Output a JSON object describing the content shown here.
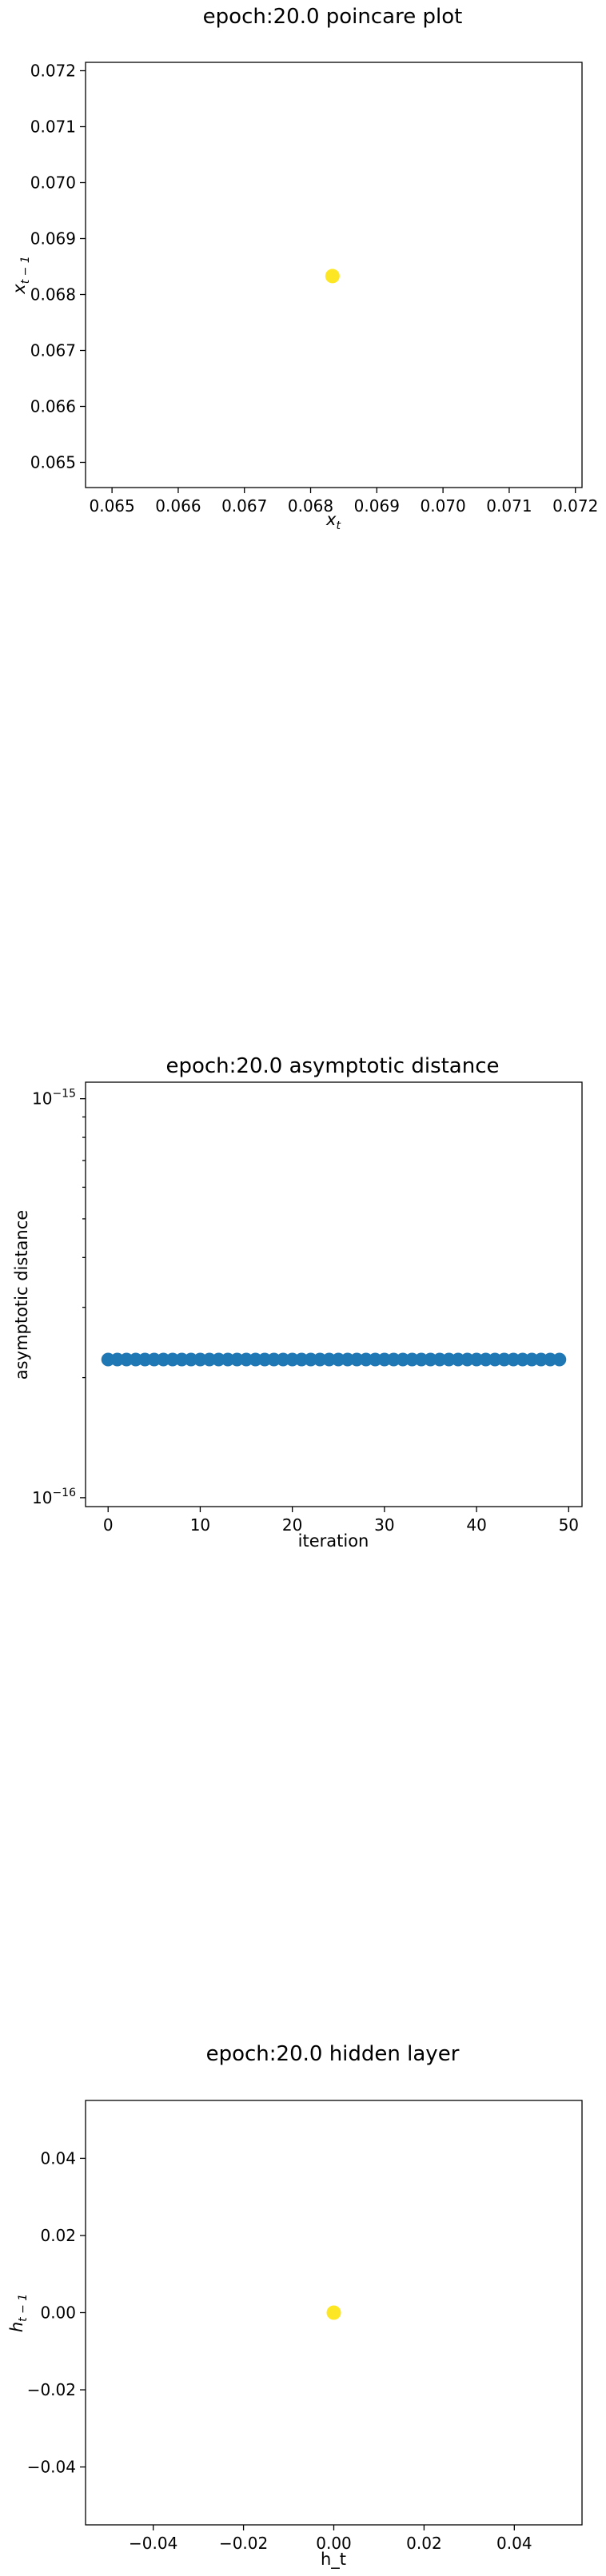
{
  "charts": [
    {
      "type": "scatter",
      "title": "epoch:20.0 poincare plot",
      "xlabel_main": "x",
      "xlabel_sub": "t",
      "ylabel_main": "x",
      "ylabel_sub": "t − 1",
      "xlim": [
        0.0646,
        0.0721
      ],
      "ylim": [
        0.06455,
        0.07215
      ],
      "xticks": [
        "0.065",
        "0.066",
        "0.067",
        "0.068",
        "0.069",
        "0.070",
        "0.071",
        "0.072"
      ],
      "yticks": [
        "0.065",
        "0.066",
        "0.067",
        "0.068",
        "0.069",
        "0.070",
        "0.071",
        "0.072"
      ],
      "points": [
        {
          "x": 0.06833,
          "y": 0.06833
        }
      ],
      "point_color": "#fde725"
    },
    {
      "type": "scatter",
      "title": "epoch:20.0 asymptotic distance",
      "xlabel": "iteration",
      "ylabel": "asymptotic distance",
      "yscale": "log",
      "xlim": [
        -2.45,
        51.45
      ],
      "ylim": [
        9.5e-17,
        1.1e-15
      ],
      "xticks": [
        "0",
        "10",
        "20",
        "30",
        "40",
        "50"
      ],
      "yticks_base": "10",
      "yticks_exp": [
        "−16",
        "−15"
      ],
      "series_y": 2.22e-16,
      "series_x": [
        0,
        1,
        2,
        3,
        4,
        5,
        6,
        7,
        8,
        9,
        10,
        11,
        12,
        13,
        14,
        15,
        16,
        17,
        18,
        19,
        20,
        21,
        22,
        23,
        24,
        25,
        26,
        27,
        28,
        29,
        30,
        31,
        32,
        33,
        34,
        35,
        36,
        37,
        38,
        39,
        40,
        41,
        42,
        43,
        44,
        45,
        46,
        47,
        48,
        49
      ],
      "point_color": "#1f77b4"
    },
    {
      "type": "scatter",
      "title": "epoch:20.0 hidden layer",
      "xlabel": "h_t",
      "ylabel_main": "h",
      "ylabel_sub": "t − 1",
      "xlim": [
        -0.055,
        0.055
      ],
      "ylim": [
        -0.055,
        0.055
      ],
      "xticks": [
        "−0.04",
        "−0.02",
        "0.00",
        "0.02",
        "0.04"
      ],
      "yticks": [
        "−0.04",
        "−0.02",
        "0.00",
        "0.02",
        "0.04"
      ],
      "points": [
        {
          "x": 0.0,
          "y": 0.0
        }
      ],
      "point_color": "#fde725"
    }
  ],
  "chart_data": [
    {
      "type": "scatter",
      "title": "epoch:20.0 poincare plot",
      "xlabel": "x_t",
      "ylabel": "x_{t-1}",
      "xlim": [
        0.0646,
        0.0721
      ],
      "ylim": [
        0.06455,
        0.07215
      ],
      "series": [
        {
          "x": [
            0.06833
          ],
          "y": [
            0.06833
          ]
        }
      ]
    },
    {
      "type": "scatter",
      "title": "epoch:20.0 asymptotic distance",
      "xlabel": "iteration",
      "ylabel": "asymptotic distance",
      "yscale": "log",
      "xlim": [
        -2.45,
        51.45
      ],
      "ylim": [
        9.5e-17,
        1.1e-15
      ],
      "series": [
        {
          "x": [
            0,
            1,
            2,
            3,
            4,
            5,
            6,
            7,
            8,
            9,
            10,
            11,
            12,
            13,
            14,
            15,
            16,
            17,
            18,
            19,
            20,
            21,
            22,
            23,
            24,
            25,
            26,
            27,
            28,
            29,
            30,
            31,
            32,
            33,
            34,
            35,
            36,
            37,
            38,
            39,
            40,
            41,
            42,
            43,
            44,
            45,
            46,
            47,
            48,
            49
          ],
          "y": [
            2.22e-16,
            2.22e-16,
            2.22e-16,
            2.22e-16,
            2.22e-16,
            2.22e-16,
            2.22e-16,
            2.22e-16,
            2.22e-16,
            2.22e-16,
            2.22e-16,
            2.22e-16,
            2.22e-16,
            2.22e-16,
            2.22e-16,
            2.22e-16,
            2.22e-16,
            2.22e-16,
            2.22e-16,
            2.22e-16,
            2.22e-16,
            2.22e-16,
            2.22e-16,
            2.22e-16,
            2.22e-16,
            2.22e-16,
            2.22e-16,
            2.22e-16,
            2.22e-16,
            2.22e-16,
            2.22e-16,
            2.22e-16,
            2.22e-16,
            2.22e-16,
            2.22e-16,
            2.22e-16,
            2.22e-16,
            2.22e-16,
            2.22e-16,
            2.22e-16,
            2.22e-16,
            2.22e-16,
            2.22e-16,
            2.22e-16,
            2.22e-16,
            2.22e-16,
            2.22e-16,
            2.22e-16,
            2.22e-16,
            2.22e-16
          ]
        }
      ]
    },
    {
      "type": "scatter",
      "title": "epoch:20.0 hidden layer",
      "xlabel": "h_t",
      "ylabel": "h_{t-1}",
      "xlim": [
        -0.055,
        0.055
      ],
      "ylim": [
        -0.055,
        0.055
      ],
      "series": [
        {
          "x": [
            0.0
          ],
          "y": [
            0.0
          ]
        }
      ]
    }
  ]
}
